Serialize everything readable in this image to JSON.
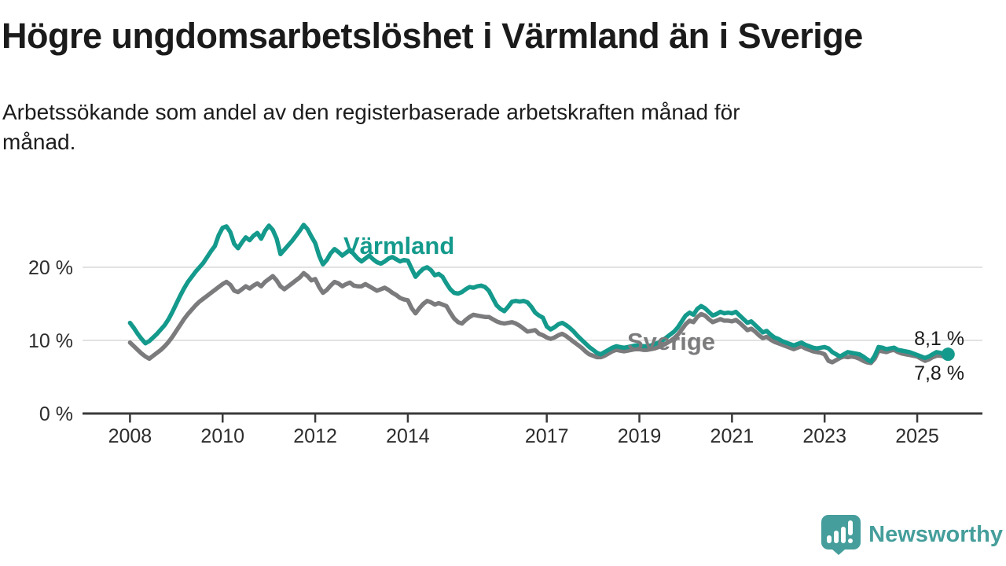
{
  "header": {
    "title": "Högre ungdomsarbetslöshet i Värmland än i Sverige",
    "subtitle_line1": "Arbetssökande som andel av den registerbaserade arbetskraften månad för",
    "subtitle_line2": "månad."
  },
  "chart_data": {
    "type": "line",
    "unit": "%",
    "frequency": "monthly",
    "x_start": "2008-01",
    "x_end": "2025-09",
    "ylim": [
      0,
      28
    ],
    "grid": "horizontal",
    "legend_position": "inline-labels",
    "y_ticks": [
      {
        "label": "20 %",
        "value": 20
      },
      {
        "label": "10 %",
        "value": 10
      },
      {
        "label": "0 %",
        "value": 0
      }
    ],
    "x_ticks": [
      2008,
      2010,
      2012,
      2014,
      2017,
      2019,
      2021,
      2023,
      2025
    ],
    "series": [
      {
        "name": "Värmland",
        "color": "#149a8c",
        "end_label": "8,1 %",
        "end_value": 8.1,
        "end_dot": true,
        "values": [
          12.4,
          11.7,
          10.9,
          10.2,
          9.6,
          9.9,
          10.4,
          10.9,
          11.5,
          12.1,
          12.9,
          13.9,
          15.0,
          16.1,
          17.1,
          18.0,
          18.7,
          19.4,
          20.0,
          20.6,
          21.4,
          22.2,
          22.9,
          24.4,
          25.4,
          25.6,
          24.8,
          23.2,
          22.6,
          23.4,
          24.1,
          23.7,
          24.3,
          24.7,
          23.9,
          25.0,
          25.7,
          25.1,
          23.9,
          21.8,
          22.4,
          23.0,
          23.6,
          24.3,
          25.0,
          25.8,
          25.2,
          24.2,
          23.3,
          21.6,
          20.4,
          21.0,
          21.9,
          22.5,
          22.1,
          21.6,
          22.0,
          22.4,
          21.8,
          21.2,
          20.8,
          21.2,
          21.6,
          21.1,
          20.7,
          20.5,
          20.8,
          21.2,
          21.4,
          21.1,
          20.8,
          21.0,
          20.9,
          19.8,
          18.7,
          19.3,
          19.8,
          20.0,
          19.6,
          18.9,
          19.1,
          18.7,
          17.8,
          17.0,
          16.5,
          16.4,
          16.6,
          17.0,
          17.3,
          17.2,
          17.4,
          17.5,
          17.3,
          16.8,
          15.8,
          14.8,
          14.3,
          14.0,
          14.6,
          15.3,
          15.4,
          15.3,
          15.4,
          15.2,
          14.6,
          13.8,
          13.4,
          13.1,
          11.9,
          11.5,
          11.8,
          12.2,
          12.4,
          12.1,
          11.7,
          11.2,
          10.6,
          10.1,
          9.6,
          9.1,
          8.7,
          8.3,
          8.1,
          8.4,
          8.7,
          9.0,
          9.2,
          9.1,
          9.0,
          9.1,
          9.2,
          9.3,
          9.3,
          9.2,
          9.2,
          9.3,
          9.5,
          9.7,
          10.0,
          10.4,
          10.8,
          11.2,
          11.8,
          12.6,
          13.4,
          13.8,
          13.5,
          14.3,
          14.7,
          14.4,
          13.9,
          13.4,
          13.6,
          13.9,
          13.7,
          13.8,
          13.7,
          13.9,
          13.4,
          12.9,
          12.4,
          12.6,
          12.1,
          11.6,
          11.1,
          11.3,
          10.8,
          10.4,
          10.2,
          9.9,
          9.7,
          9.5,
          9.3,
          9.5,
          9.7,
          9.4,
          9.2,
          9.0,
          8.9,
          9.0,
          9.1,
          8.9,
          8.4,
          8.1,
          7.8,
          8.1,
          8.4,
          8.3,
          8.2,
          8.1,
          7.8,
          7.4,
          7.1,
          7.9,
          9.1,
          9.0,
          8.8,
          8.9,
          9.0,
          8.7,
          8.6,
          8.5,
          8.4,
          8.2,
          8.0,
          7.8,
          7.6,
          7.8,
          8.1,
          8.4,
          8.3,
          8.2,
          8.1
        ]
      },
      {
        "name": "Sverige",
        "color": "#7b7b7d",
        "end_label": "7,8 %",
        "end_value": 7.8,
        "end_dot": false,
        "values": [
          9.7,
          9.2,
          8.7,
          8.2,
          7.8,
          7.5,
          7.9,
          8.3,
          8.7,
          9.2,
          9.8,
          10.5,
          11.3,
          12.1,
          12.9,
          13.6,
          14.2,
          14.8,
          15.3,
          15.7,
          16.1,
          16.5,
          16.9,
          17.3,
          17.7,
          18.0,
          17.6,
          16.8,
          16.6,
          17.0,
          17.4,
          17.1,
          17.5,
          17.8,
          17.4,
          18.0,
          18.4,
          18.8,
          18.2,
          17.4,
          17.0,
          17.4,
          17.8,
          18.2,
          18.6,
          19.2,
          18.8,
          18.2,
          18.4,
          17.3,
          16.5,
          16.9,
          17.5,
          18.0,
          17.8,
          17.4,
          17.7,
          17.9,
          17.5,
          17.4,
          17.4,
          17.7,
          17.4,
          17.1,
          16.8,
          17.0,
          17.2,
          16.9,
          16.5,
          16.2,
          15.8,
          15.6,
          15.5,
          14.4,
          13.7,
          14.4,
          15.0,
          15.4,
          15.2,
          14.9,
          15.1,
          14.9,
          14.7,
          13.8,
          13.0,
          12.5,
          12.3,
          12.8,
          13.2,
          13.5,
          13.4,
          13.3,
          13.2,
          13.2,
          12.9,
          12.6,
          12.4,
          12.3,
          12.4,
          12.5,
          12.3,
          12.0,
          11.6,
          11.2,
          11.3,
          11.4,
          10.9,
          10.7,
          10.4,
          10.2,
          10.4,
          10.7,
          10.9,
          10.6,
          10.2,
          9.8,
          9.4,
          9.0,
          8.5,
          8.1,
          7.9,
          7.7,
          7.7,
          7.9,
          8.2,
          8.5,
          8.7,
          8.6,
          8.5,
          8.6,
          8.7,
          8.8,
          8.8,
          8.7,
          8.7,
          8.8,
          8.9,
          9.1,
          9.3,
          9.6,
          9.9,
          10.3,
          10.8,
          11.5,
          12.2,
          12.7,
          12.5,
          13.2,
          13.6,
          13.4,
          12.9,
          12.5,
          12.7,
          12.9,
          12.7,
          12.7,
          12.6,
          12.8,
          12.4,
          11.9,
          11.4,
          11.6,
          11.2,
          10.7,
          10.3,
          10.5,
          10.1,
          9.8,
          9.6,
          9.4,
          9.2,
          9.0,
          8.8,
          9.0,
          9.2,
          8.9,
          8.7,
          8.5,
          8.4,
          8.3,
          8.1,
          7.2,
          7.0,
          7.3,
          7.6,
          7.8,
          7.7,
          7.8,
          7.7,
          7.5,
          7.2,
          7.0,
          6.9,
          7.5,
          8.6,
          8.5,
          8.4,
          8.6,
          8.7,
          8.4,
          8.2,
          8.1,
          8.0,
          7.9,
          7.8,
          7.5,
          7.2,
          7.4,
          7.7,
          7.9,
          7.9,
          7.8,
          7.8
        ]
      }
    ]
  },
  "logo": {
    "text": "Newsworthy",
    "color": "#459e9b"
  }
}
